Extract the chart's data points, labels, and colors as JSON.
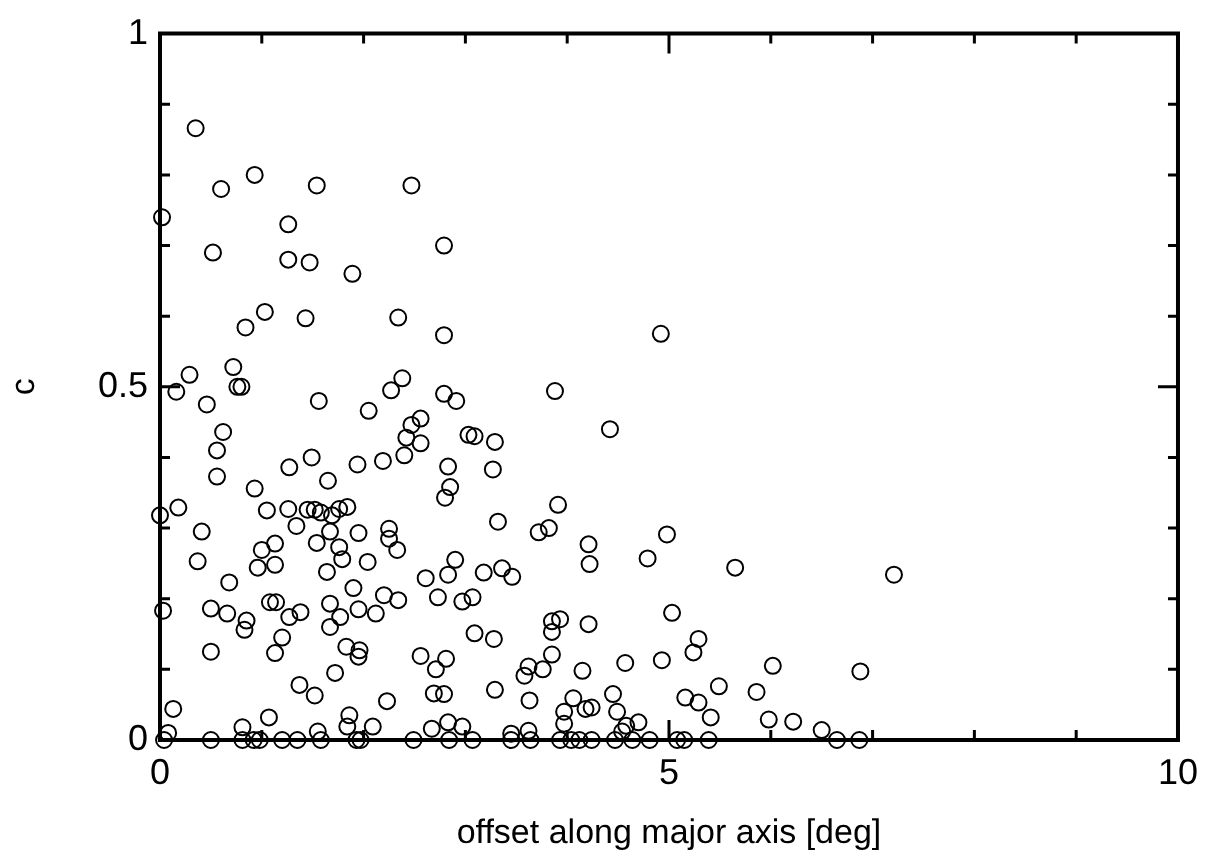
{
  "chart_data": {
    "type": "scatter",
    "xlabel": "offset along major axis [deg]",
    "ylabel": "c",
    "marker": "circle",
    "grid": false,
    "legend": false,
    "xlim": [
      0,
      10
    ],
    "ylim": [
      0,
      1
    ],
    "xticks": [
      0,
      {
        "value": 1,
        "label": null
      },
      {
        "value": 2,
        "label": null
      },
      {
        "value": 3,
        "label": null
      },
      {
        "value": 4,
        "label": null
      },
      5,
      {
        "value": 6,
        "label": null
      },
      {
        "value": 7,
        "label": null
      },
      {
        "value": 8,
        "label": null
      },
      {
        "value": 9,
        "label": null
      },
      10
    ],
    "yticks": [
      0,
      {
        "value": 0.1,
        "label": null
      },
      {
        "value": 0.2,
        "label": null
      },
      {
        "value": 0.3,
        "label": null
      },
      {
        "value": 0.4,
        "label": null
      },
      0.5,
      {
        "value": 0.6,
        "label": null
      },
      {
        "value": 0.7,
        "label": null
      },
      {
        "value": 0.8,
        "label": null
      },
      {
        "value": 0.9,
        "label": null
      },
      1
    ],
    "series": [
      {
        "color": "#000000",
        "x": [
          0.35,
          0.93,
          0.6,
          1.54,
          2.47,
          0.02,
          1.26,
          0.52,
          1.26,
          1.47,
          2.79,
          1.89,
          1.03,
          0.84,
          1.43,
          2.34,
          2.79,
          0.29,
          0.72,
          0.76,
          0.8,
          0.16,
          2.38,
          2.27,
          2.79,
          2.91,
          0.46,
          1.56,
          4.92,
          3.88,
          4.42,
          2.05,
          0.62,
          2.47,
          2.56,
          0.56,
          2.42,
          2.56,
          3.03,
          3.09,
          3.29,
          1.27,
          1.49,
          1.94,
          2.19,
          2.4,
          2.83,
          3.27,
          0.56,
          0.93,
          1.65,
          2.85,
          2.8,
          0.18,
          0,
          1.05,
          1.26,
          1.45,
          1.52,
          1.58,
          1.69,
          1.76,
          1.84,
          1.34,
          1.67,
          1.95,
          2.25,
          2.25,
          2.33,
          3.32,
          0.41,
          1.54,
          1.76,
          1.79,
          2.04,
          1.0,
          1.13,
          0.96,
          1.13,
          1.64,
          0.37,
          0.68,
          2.61,
          2.83,
          2.9,
          3.18,
          3.36,
          3.46,
          0.03,
          0.5,
          0.66,
          0.85,
          0.83,
          1.08,
          1.14,
          1.27,
          1.38,
          1.67,
          1.77,
          1.67,
          1.9,
          1.95,
          2.12,
          2.2,
          2.34,
          2.73,
          2.97,
          3.07,
          3.09,
          3.28,
          0.5,
          1.13,
          1.2,
          1.83,
          1.95,
          1.96,
          1.72,
          2.56,
          2.81,
          2.71,
          1.37,
          1.52,
          2.23,
          2.69,
          2.79,
          3.29,
          0.13,
          1.07,
          1.86,
          0.08,
          0.81,
          1.55,
          1.84,
          2.09,
          2.67,
          2.83,
          2.97,
          3.45,
          3.91,
          3.72,
          3.82,
          4.21,
          4.22,
          4.98,
          4.79,
          5.65,
          7.21,
          5.03,
          3.85,
          3.93,
          3.85,
          4.21,
          5.29,
          5.24,
          3.85,
          3.62,
          3.58,
          3.76,
          4.15,
          4.57,
          4.93,
          6.02,
          6.88,
          3.63,
          4.06,
          4.45,
          5.16,
          5.29,
          5.49,
          5.86,
          3.97,
          4.18,
          4.24,
          4.49,
          5.41,
          5.98,
          6.22,
          3.97,
          4.7,
          4.58,
          6.5,
          3.62,
          4.54,
          0.04,
          0.5,
          0.81,
          0.92,
          0.98,
          1.2,
          1.35,
          1.58,
          1.93,
          1.97,
          2.49,
          2.84,
          3.07,
          3.45,
          3.64,
          3.93,
          4.04,
          4.12,
          4.24,
          4.47,
          4.64,
          4.81,
          5.08,
          5.15,
          5.39,
          6.65,
          6.87
        ],
        "values": [
          0.866,
          0.8,
          0.78,
          0.785,
          0.785,
          0.74,
          0.73,
          0.69,
          0.68,
          0.676,
          0.7,
          0.66,
          0.606,
          0.584,
          0.597,
          0.598,
          0.573,
          0.517,
          0.528,
          0.5,
          0.5,
          0.493,
          0.512,
          0.495,
          0.49,
          0.48,
          0.475,
          0.48,
          0.575,
          0.494,
          0.44,
          0.466,
          0.436,
          0.446,
          0.455,
          0.41,
          0.428,
          0.42,
          0.432,
          0.43,
          0.422,
          0.386,
          0.4,
          0.39,
          0.395,
          0.403,
          0.387,
          0.383,
          0.373,
          0.356,
          0.367,
          0.358,
          0.343,
          0.329,
          0.318,
          0.325,
          0.327,
          0.326,
          0.326,
          0.322,
          0.318,
          0.327,
          0.33,
          0.303,
          0.295,
          0.293,
          0.299,
          0.285,
          0.269,
          0.309,
          0.295,
          0.279,
          0.273,
          0.256,
          0.252,
          0.269,
          0.278,
          0.244,
          0.248,
          0.238,
          0.253,
          0.223,
          0.229,
          0.234,
          0.255,
          0.237,
          0.243,
          0.231,
          0.183,
          0.186,
          0.179,
          0.169,
          0.156,
          0.195,
          0.195,
          0.174,
          0.181,
          0.193,
          0.174,
          0.16,
          0.215,
          0.185,
          0.179,
          0.205,
          0.198,
          0.202,
          0.196,
          0.202,
          0.151,
          0.143,
          0.125,
          0.123,
          0.145,
          0.132,
          0.118,
          0.127,
          0.095,
          0.119,
          0.115,
          0.1,
          0.078,
          0.063,
          0.055,
          0.066,
          0.065,
          0.071,
          0.044,
          0.032,
          0.035,
          0.01,
          0.018,
          0.012,
          0.019,
          0.019,
          0.016,
          0.025,
          0.019,
          0.009,
          0.333,
          0.294,
          0.3,
          0.277,
          0.249,
          0.291,
          0.257,
          0.244,
          0.234,
          0.18,
          0.168,
          0.171,
          0.153,
          0.164,
          0.143,
          0.124,
          0.121,
          0.104,
          0.091,
          0.1,
          0.098,
          0.109,
          0.113,
          0.105,
          0.097,
          0.056,
          0.059,
          0.065,
          0.06,
          0.053,
          0.076,
          0.068,
          0.04,
          0.044,
          0.046,
          0.04,
          0.032,
          0.029,
          0.026,
          0.023,
          0.025,
          0.02,
          0.014,
          0.013,
          0.012,
          0,
          0,
          0,
          0,
          0,
          0,
          0,
          0,
          0,
          0,
          0,
          0,
          0,
          0,
          0,
          0,
          0,
          0,
          0,
          0,
          0,
          0,
          0,
          0,
          0,
          0,
          0
        ]
      }
    ]
  }
}
